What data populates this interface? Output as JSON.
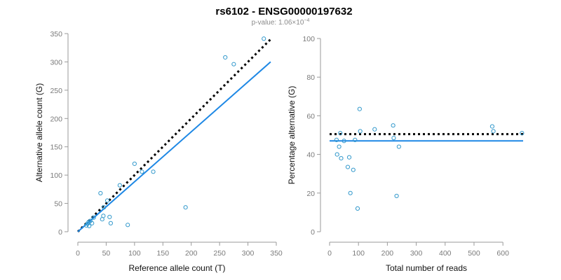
{
  "header": {
    "title": "rs6102 - ENSG00000197632",
    "pvalue_prefix": "p-value: 1.06×10",
    "pvalue_exponent": "−4"
  },
  "colors": {
    "points": "#3399cc",
    "fit_line": "#1e88e5",
    "reference_line": "#000000"
  },
  "chart_data": [
    {
      "type": "scatter",
      "xlabel": "Reference allele count (T)",
      "ylabel": "Alternative allele count (G)",
      "xlim": [
        0,
        350
      ],
      "ylim": [
        0,
        350
      ],
      "xticks": [
        0,
        50,
        100,
        150,
        200,
        250,
        300,
        350
      ],
      "yticks": [
        0,
        50,
        100,
        150,
        200,
        250,
        300,
        350
      ],
      "x_tick_labels": [
        "0",
        "50",
        "100",
        "150",
        "200",
        "250",
        "300",
        "350"
      ],
      "y_tick_labels": [
        "0",
        "50",
        "100",
        "150",
        "200",
        "250",
        "300",
        "350"
      ],
      "points": [
        {
          "x": 15,
          "y": 11
        },
        {
          "x": 17,
          "y": 14
        },
        {
          "x": 19,
          "y": 17
        },
        {
          "x": 20,
          "y": 10
        },
        {
          "x": 22,
          "y": 19
        },
        {
          "x": 25,
          "y": 15
        },
        {
          "x": 28,
          "y": 25
        },
        {
          "x": 40,
          "y": 68
        },
        {
          "x": 43,
          "y": 22
        },
        {
          "x": 45,
          "y": 28
        },
        {
          "x": 46,
          "y": 43
        },
        {
          "x": 52,
          "y": 55
        },
        {
          "x": 56,
          "y": 26
        },
        {
          "x": 58,
          "y": 15
        },
        {
          "x": 74,
          "y": 82
        },
        {
          "x": 88,
          "y": 12
        },
        {
          "x": 100,
          "y": 120
        },
        {
          "x": 113,
          "y": 106
        },
        {
          "x": 133,
          "y": 106
        },
        {
          "x": 190,
          "y": 43
        },
        {
          "x": 260,
          "y": 308
        },
        {
          "x": 275,
          "y": 296
        },
        {
          "x": 328,
          "y": 341
        }
      ],
      "reference_line": {
        "style": "dotted",
        "x": [
          0,
          340
        ],
        "y": [
          0,
          340
        ]
      },
      "fit_line": {
        "style": "solid",
        "x": [
          0,
          340
        ],
        "y": [
          0,
          300
        ]
      },
      "grid": false
    },
    {
      "type": "scatter",
      "xlabel": "Total number of reads",
      "ylabel": "Percentage alternative (G)",
      "xlim": [
        0,
        670
      ],
      "ylim": [
        0,
        100
      ],
      "xticks": [
        0,
        100,
        200,
        300,
        400,
        500,
        600
      ],
      "yticks": [
        0,
        20,
        40,
        60,
        80,
        100
      ],
      "x_tick_labels": [
        "0",
        "100",
        "200",
        "300",
        "400",
        "500",
        "600"
      ],
      "y_tick_labels": [
        "0",
        "20",
        "40",
        "60",
        "80",
        "100"
      ],
      "points": [
        {
          "x": 24,
          "y": 47.5
        },
        {
          "x": 26,
          "y": 40
        },
        {
          "x": 33,
          "y": 44
        },
        {
          "x": 37,
          "y": 51
        },
        {
          "x": 40,
          "y": 38
        },
        {
          "x": 50,
          "y": 47
        },
        {
          "x": 63,
          "y": 33.5
        },
        {
          "x": 68,
          "y": 38.5
        },
        {
          "x": 72,
          "y": 20
        },
        {
          "x": 82,
          "y": 32
        },
        {
          "x": 88,
          "y": 47.5
        },
        {
          "x": 97,
          "y": 12
        },
        {
          "x": 104,
          "y": 63.5
        },
        {
          "x": 106,
          "y": 52
        },
        {
          "x": 156,
          "y": 53
        },
        {
          "x": 220,
          "y": 55
        },
        {
          "x": 222,
          "y": 48.5
        },
        {
          "x": 232,
          "y": 18.5
        },
        {
          "x": 240,
          "y": 44
        },
        {
          "x": 563,
          "y": 54.5
        },
        {
          "x": 567,
          "y": 52
        },
        {
          "x": 666,
          "y": 51
        }
      ],
      "reference_line": {
        "style": "dotted",
        "x": [
          0,
          670
        ],
        "y": [
          50.5,
          50.5
        ]
      },
      "fit_line": {
        "style": "solid",
        "x": [
          0,
          670
        ],
        "y": [
          47,
          47
        ]
      },
      "grid": false
    }
  ]
}
